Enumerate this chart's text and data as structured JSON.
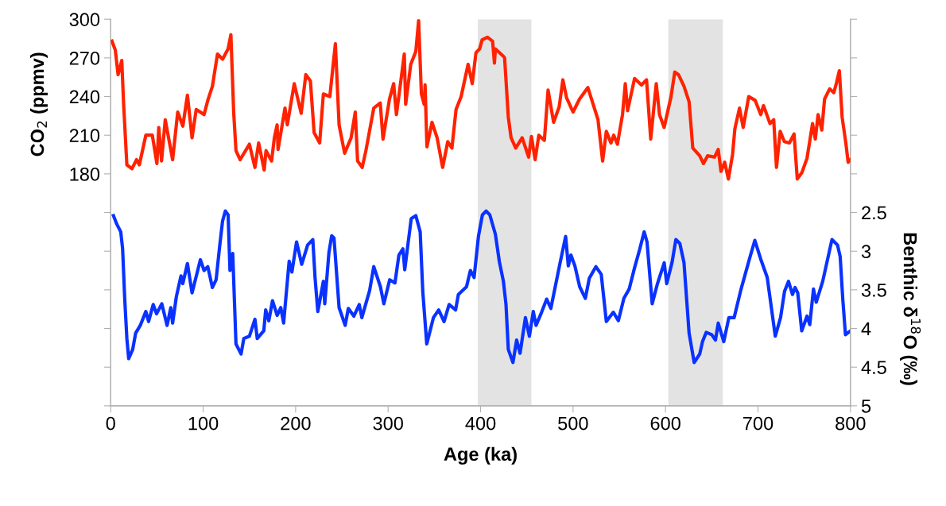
{
  "chart_data": {
    "type": "line",
    "xlabel": "Age (ka)",
    "ylabel": "CO$_{2}$ (ppmv)",
    "y2label": "Benthic δ$^{18}$O (‰)",
    "xlim": [
      0,
      800
    ],
    "xticks": [
      0,
      100,
      200,
      300,
      400,
      500,
      600,
      700,
      800
    ],
    "ylim": [
      0,
      300
    ],
    "yticks": [
      {
        "value": 0,
        "label": null
      },
      {
        "value": 30,
        "label": null
      },
      {
        "value": 60,
        "label": null
      },
      {
        "value": 90,
        "label": null
      },
      {
        "value": 120,
        "label": null
      },
      {
        "value": 150,
        "label": null
      },
      180,
      210,
      240,
      270,
      300
    ],
    "y2lim": [
      5,
      0
    ],
    "y2ticks": [
      {
        "value": 0,
        "label": null
      },
      {
        "value": 0.5,
        "label": null
      },
      {
        "value": 1,
        "label": null
      },
      {
        "value": 1.5,
        "label": null
      },
      {
        "value": 2,
        "label": null
      },
      2.5,
      3,
      3.5,
      4,
      4.5,
      5
    ],
    "grid": false,
    "line_style": "solid",
    "marker": "none",
    "bands": [
      {
        "axis": "x",
        "from": 397,
        "to": 455,
        "color": "#e3e3e3"
      },
      {
        "axis": "x",
        "from": 603,
        "to": 662,
        "color": "#e3e3e3"
      }
    ],
    "series": [
      {
        "color": "#ff2200",
        "x": [
          1.4,
          5,
          8,
          12,
          14,
          17.5,
          23,
          28,
          31,
          38,
          45,
          50,
          52,
          55,
          59,
          67,
          72.5,
          78,
          83,
          88,
          92.5,
          101,
          105,
          110,
          115.5,
          121,
          127,
          130,
          133,
          135.5,
          140,
          150,
          156,
          160,
          166,
          168,
          174,
          177,
          180,
          181,
          188.5,
          191,
          198.5,
          206,
          211,
          216,
          220,
          226,
          230,
          237,
          243,
          247,
          253,
          260,
          264.5,
          267,
          272,
          276,
          284.5,
          291.5,
          294.5,
          301.5,
          306,
          309,
          314.5,
          317.5,
          319,
          324.5,
          330,
          333,
          336,
          339,
          340,
          342,
          347.5,
          353,
          359,
          364.5,
          369,
          373.5,
          379,
          386.5,
          391,
          395,
          399,
          401.7,
          407.5,
          413,
          415,
          416,
          425,
          426,
          430,
          433,
          438,
          445,
          452,
          455,
          459,
          463,
          469,
          473,
          479,
          485,
          489,
          493,
          500,
          507,
          516,
          527,
          532,
          536,
          541,
          544,
          548,
          553.5,
          556.5,
          559,
          566.5,
          574,
          579.5,
          584,
          590,
          593.5,
          598.5,
          606,
          610,
          614,
          620,
          625.5,
          629.5,
          637,
          641,
          645.5,
          653,
          657,
          660,
          664,
          668,
          672.5,
          675,
          680,
          684,
          690,
          697,
          703,
          706,
          713,
          717,
          720,
          724,
          728.5,
          734,
          739,
          742.5,
          747.5,
          753,
          759,
          762,
          765,
          769,
          772,
          777.5,
          782,
          785,
          788,
          791,
          795,
          797.5,
          800
        ],
        "values": [
          283,
          276,
          257,
          268,
          234,
          187,
          184,
          191,
          187,
          210,
          210,
          188,
          216,
          190,
          222,
          191,
          228,
          217,
          241,
          208,
          230,
          226,
          237,
          248,
          273,
          269,
          277,
          288,
          228,
          198,
          191,
          203,
          185,
          204,
          183,
          198,
          190,
          208,
          218,
          199,
          231,
          218,
          250,
          227,
          257,
          252,
          212,
          204,
          242,
          240,
          281,
          218,
          196,
          208,
          228,
          190,
          185,
          198,
          231,
          235,
          207,
          238,
          250,
          226,
          256,
          273,
          234,
          265,
          275,
          299,
          242,
          234,
          249,
          201,
          220,
          208,
          185,
          205,
          200,
          230,
          240,
          265,
          250,
          274,
          277,
          284,
          286,
          283,
          266,
          277,
          271,
          270,
          224,
          208,
          200,
          208,
          193,
          209,
          191,
          210,
          206,
          245,
          220,
          232,
          253,
          239,
          228,
          238,
          247,
          222,
          190,
          213,
          204,
          210,
          203,
          226,
          250,
          229,
          254,
          249,
          253,
          207,
          250,
          226,
          216,
          240,
          259,
          257,
          248,
          236,
          200,
          194,
          188,
          194,
          193,
          199,
          182,
          189,
          176,
          195,
          215,
          231,
          216,
          240,
          237,
          226,
          233,
          219,
          222,
          185,
          213,
          205,
          204,
          211,
          176,
          181,
          192,
          219,
          207,
          226,
          214,
          238,
          246,
          243,
          251,
          260,
          224,
          204,
          189,
          191
        ]
      },
      {
        "color": "#0a32ff",
        "axis": "y2",
        "x": [
          3,
          6.6,
          10.9,
          12.9,
          15.2,
          17.5,
          19.5,
          23.8,
          27,
          32,
          38,
          41,
          46,
          49.6,
          55.3,
          61,
          65,
          67,
          71,
          76,
          78,
          83,
          88,
          97,
          101,
          105,
          110,
          114,
          118,
          121,
          124,
          127,
          129,
          132,
          135.5,
          141,
          144,
          150,
          156,
          158.5,
          165.6,
          167.6,
          171,
          175,
          180,
          184,
          187,
          193,
          196,
          201,
          206.6,
          213,
          218.6,
          221,
          224,
          230,
          231.5,
          236,
          239,
          241.5,
          247,
          253.6,
          257,
          263,
          268.8,
          271.6,
          280,
          284.5,
          291.7,
          295.4,
          301.7,
          307.4,
          311.7,
          316,
          318,
          321.8,
          325,
          330,
          334.7,
          337.5,
          341.8,
          349,
          354.7,
          360.5,
          366,
          373,
          376,
          384.8,
          389,
          393,
          397.7,
          402,
          406,
          410,
          416,
          420.4,
          424.7,
          427.5,
          430,
          435,
          439,
          442.7,
          448.5,
          452.8,
          457,
          460,
          466,
          471.5,
          476,
          486,
          492,
          494.9,
          497.7,
          502,
          507.2,
          513.3,
          517.6,
          524.7,
          530.5,
          536,
          543.6,
          549,
          555,
          560.7,
          566.4,
          572,
          576.9,
          580,
          585.6,
          591.3,
          598.6,
          601.3,
          607,
          611.2,
          615.5,
          620,
          625.5,
          631,
          637,
          640,
          644,
          650,
          654,
          657,
          663,
          668.5,
          674.2,
          681.5,
          691.5,
          696.6,
          702.9,
          710,
          718.7,
          724.4,
          728.7,
          733,
          737.3,
          740.1,
          743,
          747.3,
          753,
          756,
          760,
          763,
          770,
          780,
          786,
          788.9,
          791.7,
          794.6,
          800
        ],
        "values": [
          2.54,
          2.65,
          2.75,
          2.97,
          3.62,
          4.13,
          4.39,
          4.27,
          4.06,
          3.96,
          3.78,
          3.91,
          3.69,
          3.81,
          3.68,
          3.96,
          3.73,
          3.93,
          3.59,
          3.32,
          3.42,
          3.16,
          3.54,
          3.11,
          3.25,
          3.2,
          3.47,
          3.37,
          2.92,
          2.61,
          2.48,
          2.53,
          3.25,
          3.03,
          4.2,
          4.33,
          4.13,
          4.1,
          3.88,
          4.13,
          4.03,
          3.76,
          3.9,
          3.64,
          3.83,
          3.73,
          3.93,
          3.13,
          3.27,
          2.88,
          3.17,
          2.92,
          2.85,
          3.34,
          3.78,
          3.39,
          3.68,
          3.02,
          2.8,
          2.83,
          3.73,
          3.96,
          3.74,
          3.84,
          3.69,
          3.86,
          3.51,
          3.2,
          3.46,
          3.68,
          3.37,
          3.41,
          3.05,
          2.97,
          3.24,
          2.88,
          2.58,
          2.54,
          2.75,
          3.52,
          4.2,
          3.86,
          3.76,
          3.91,
          3.69,
          3.76,
          3.56,
          3.46,
          3.25,
          3.34,
          2.81,
          2.53,
          2.48,
          2.53,
          2.78,
          3.14,
          3.39,
          3.69,
          4.27,
          4.44,
          4.15,
          4.32,
          3.86,
          4.1,
          3.78,
          3.96,
          3.79,
          3.62,
          3.74,
          3.15,
          2.81,
          3.19,
          3.05,
          3.19,
          3.46,
          3.61,
          3.35,
          3.2,
          3.3,
          3.91,
          3.79,
          3.9,
          3.61,
          3.49,
          3.22,
          2.98,
          2.75,
          2.88,
          3.68,
          3.42,
          3.15,
          3.42,
          3.15,
          2.85,
          2.9,
          3.15,
          4.06,
          4.44,
          4.33,
          4.17,
          4.05,
          4.08,
          4.15,
          3.93,
          4.17,
          3.86,
          3.86,
          3.5,
          3.07,
          2.86,
          3.1,
          3.34,
          4.1,
          3.86,
          3.52,
          3.39,
          3.56,
          3.47,
          3.54,
          4.03,
          3.84,
          3.95,
          3.49,
          3.66,
          3.39,
          2.85,
          2.92,
          3.07,
          3.62,
          4.08,
          4.03
        ]
      }
    ]
  }
}
